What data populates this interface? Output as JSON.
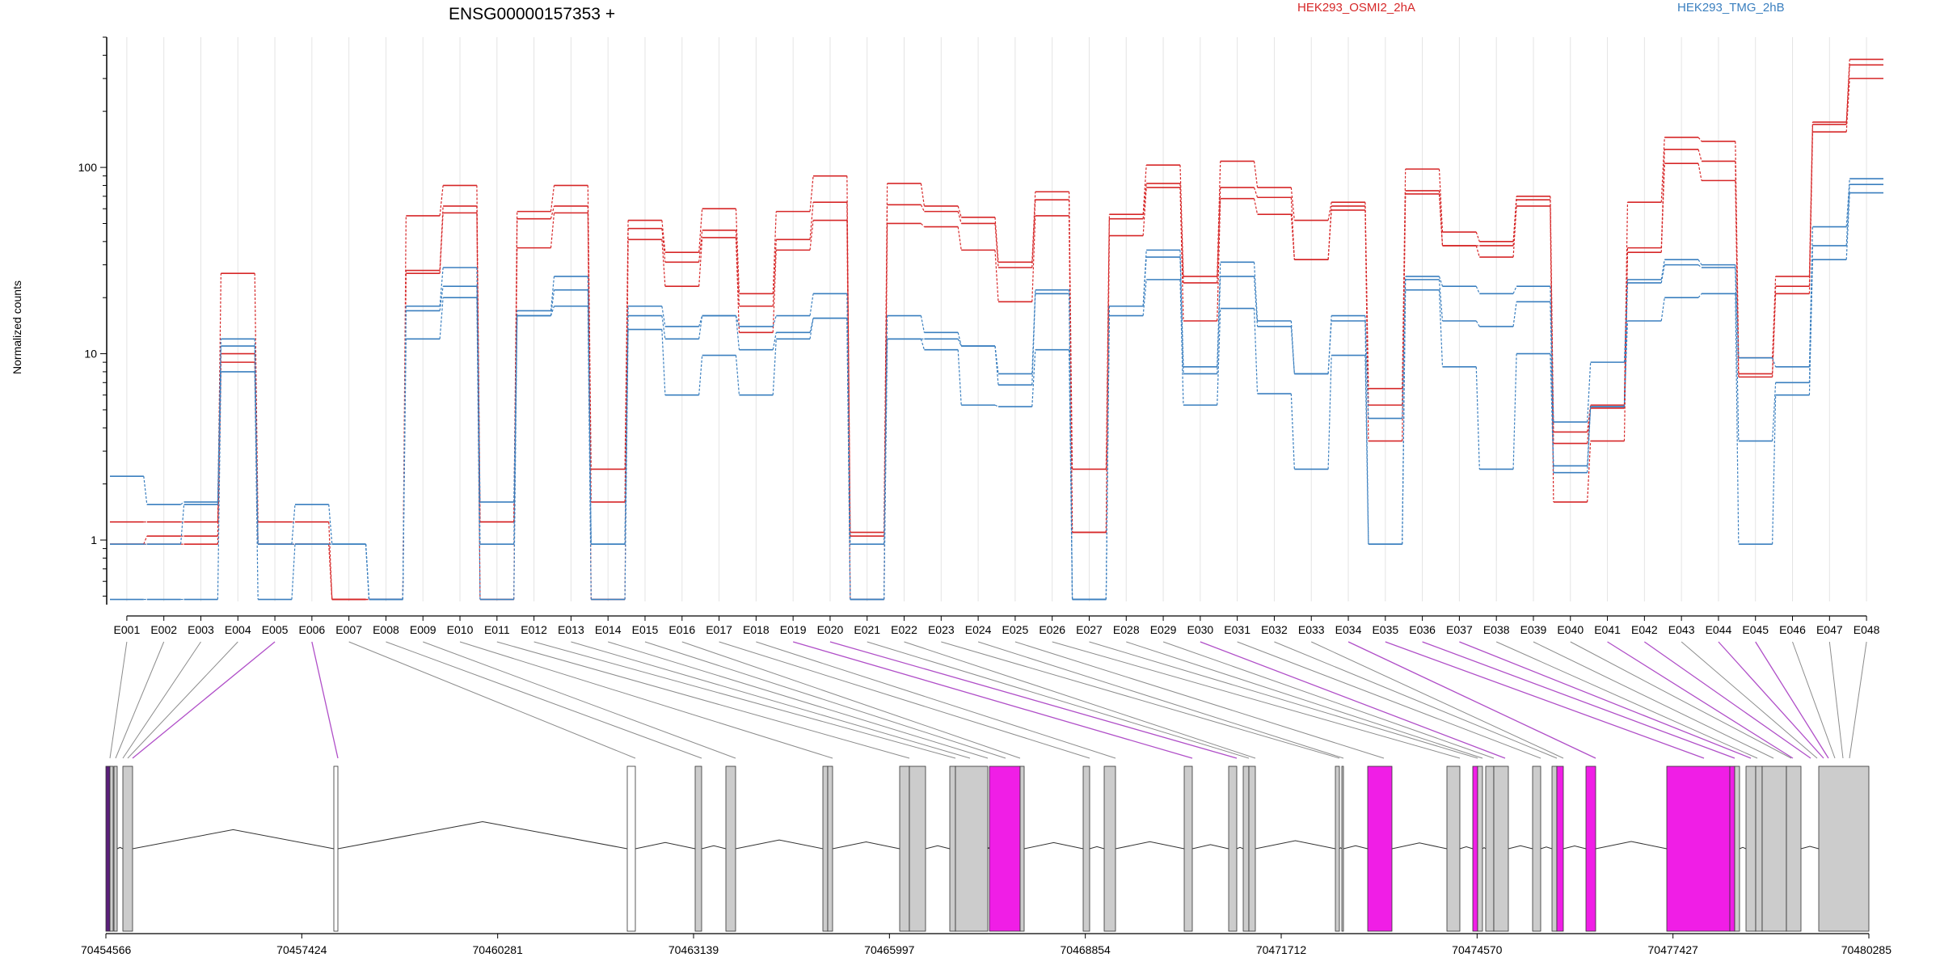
{
  "chart_data": {
    "type": "line",
    "title": "ENSG00000157353 +",
    "ylabel": "Normalized counts",
    "yscale": "log",
    "ylim": [
      0.45,
      500
    ],
    "y_ticks": [
      1,
      10,
      100
    ],
    "y_tick_labels": [
      "1",
      "10",
      "100"
    ],
    "grid": "vertical",
    "legend": [
      {
        "name": "HEK293_OSMI2_2hA",
        "color": "#d62728"
      },
      {
        "name": "HEK293_TMG_2hB",
        "color": "#3a7fbf"
      }
    ],
    "categories": [
      "E001",
      "E002",
      "E003",
      "E004",
      "E005",
      "E006",
      "E007",
      "E008",
      "E009",
      "E010",
      "E011",
      "E012",
      "E013",
      "E014",
      "E015",
      "E016",
      "E017",
      "E018",
      "E019",
      "E020",
      "E021",
      "E022",
      "E023",
      "E024",
      "E025",
      "E026",
      "E027",
      "E028",
      "E029",
      "E030",
      "E031",
      "E032",
      "E033",
      "E034",
      "E035",
      "E036",
      "E037",
      "E038",
      "E039",
      "E040",
      "E041",
      "E042",
      "E043",
      "E044",
      "E045",
      "E046",
      "E047",
      "E048"
    ],
    "series": [
      {
        "group": "HEK293_OSMI2_2hA",
        "color": "#d62728",
        "values": [
          1.25,
          1.25,
          1.25,
          27,
          1.25,
          1.25,
          0.48,
          0.48,
          55,
          80,
          1.25,
          58,
          80,
          2.4,
          52,
          35,
          60,
          21,
          58,
          90,
          1.1,
          82,
          62,
          54,
          31,
          74,
          2.4,
          56,
          103,
          26,
          108,
          78,
          52,
          65,
          6.5,
          98,
          45,
          40,
          70,
          3.8,
          5.3,
          65,
          145,
          138,
          9.5,
          26,
          175,
          380
        ]
      },
      {
        "group": "HEK293_OSMI2_2hA",
        "color": "#d62728",
        "values": [
          0.95,
          1.05,
          1.05,
          10,
          0.95,
          0.95,
          0.48,
          0.48,
          28,
          62,
          0.48,
          53,
          62,
          1.6,
          47,
          31,
          46,
          18,
          41,
          65,
          1.05,
          63,
          58,
          50,
          29,
          67,
          1.1,
          53,
          82,
          24,
          78,
          69,
          32,
          62,
          5.3,
          75,
          38,
          38,
          67,
          3.3,
          5.1,
          37,
          125,
          108,
          7.8,
          23,
          170,
          355
        ]
      },
      {
        "group": "HEK293_OSMI2_2hA",
        "color": "#d62728",
        "values": [
          0.95,
          0.95,
          0.95,
          9,
          0.95,
          0.95,
          0.48,
          0.48,
          27,
          57,
          1.25,
          37,
          57,
          0.48,
          41,
          23,
          42,
          13,
          36,
          52,
          0.48,
          50,
          48,
          36,
          19,
          55,
          1.1,
          43,
          78,
          15,
          68,
          56,
          32,
          59,
          3.4,
          72,
          38,
          33,
          62,
          1.6,
          3.4,
          35,
          105,
          85,
          7.5,
          21,
          155,
          300
        ]
      },
      {
        "group": "HEK293_TMG_2hB",
        "color": "#3a7fbf",
        "values": [
          2.2,
          1.55,
          1.6,
          12,
          0.95,
          1.55,
          0.95,
          0.48,
          18,
          29,
          1.6,
          17,
          26,
          0.95,
          18,
          14,
          16,
          14,
          16,
          21,
          0.95,
          16,
          13,
          11,
          7.8,
          22,
          0.48,
          18,
          36,
          8.5,
          31,
          15,
          7.8,
          16,
          4.5,
          26,
          23,
          21,
          23,
          4.3,
          9,
          25,
          32,
          30,
          9.5,
          8.5,
          48,
          87
        ]
      },
      {
        "group": "HEK293_TMG_2hB",
        "color": "#3a7fbf",
        "values": [
          0.95,
          0.95,
          1.55,
          11,
          0.95,
          0.95,
          0.95,
          0.48,
          17,
          23,
          0.95,
          16,
          22,
          0.95,
          16,
          12,
          16,
          10.5,
          13,
          15.5,
          0.48,
          12,
          12,
          11,
          6.8,
          21,
          0.48,
          18,
          33,
          7.8,
          26,
          14,
          7.8,
          15,
          0.95,
          25,
          15,
          14,
          19,
          2.5,
          5.2,
          24,
          30,
          29,
          3.4,
          7,
          38,
          81
        ]
      },
      {
        "group": "HEK293_TMG_2hB",
        "color": "#3a7fbf",
        "values": [
          0.48,
          0.48,
          0.48,
          8,
          0.48,
          0.95,
          0.95,
          0.48,
          12,
          20,
          0.48,
          16,
          18,
          0.48,
          13.5,
          6,
          9.8,
          6,
          12,
          15.5,
          0.48,
          12,
          10.5,
          5.3,
          5.2,
          10.5,
          0.48,
          16,
          25,
          5.3,
          17.5,
          6.1,
          2.4,
          9.8,
          0.95,
          22,
          8.5,
          2.4,
          10,
          2.3,
          5.2,
          15,
          20,
          21,
          0.95,
          6,
          32,
          73
        ]
      }
    ],
    "genomic_axis": {
      "tick_labels": [
        "70454566",
        "70457424",
        "70460281",
        "70463139",
        "70465997",
        "70468854",
        "70471712",
        "70474570",
        "70477427",
        "70480285"
      ]
    },
    "colors": {
      "exon": "#cccccc",
      "exon_highlight": "#f01ee6",
      "intron_line": "#555555",
      "connector": "#8c8c8c",
      "connector_highlight": "#b04fc8",
      "grid": "#e4e4e4"
    }
  }
}
